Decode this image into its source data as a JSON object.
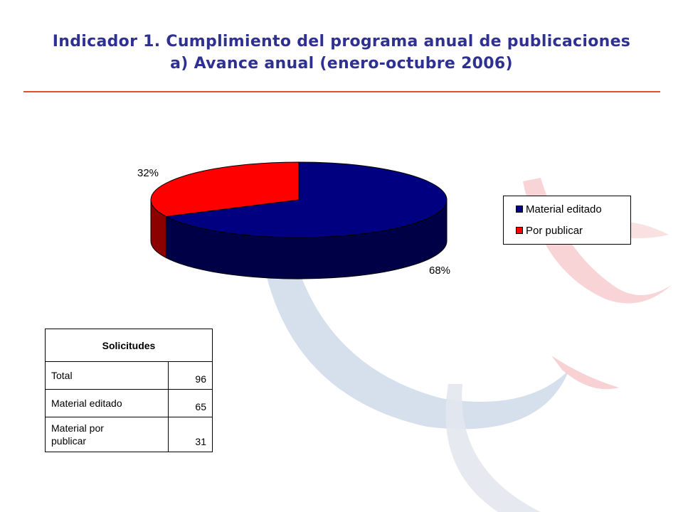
{
  "title": {
    "line1": "Indicador 1. Cumplimiento del programa anual de publicaciones",
    "line2": "a) Avance anual (enero-octubre 2006)"
  },
  "colors": {
    "title": "#2e3192",
    "rule": "#e0531f",
    "series_material_editado": "#000080",
    "series_por_publicar": "#ff0000"
  },
  "chart_data": {
    "type": "pie",
    "title": "",
    "slices": [
      {
        "label": "Material editado",
        "value": 65,
        "percent_label": "68%",
        "color": "#000080"
      },
      {
        "label": "Por publicar",
        "value": 31,
        "percent_label": "32%",
        "color": "#ff0000"
      }
    ],
    "legend": {
      "placement": "right",
      "entries": [
        "Material editado",
        "Por publicar"
      ]
    }
  },
  "table": {
    "header": "Solicitudes",
    "rows": [
      {
        "label": "Total",
        "value": "96"
      },
      {
        "label": "Material editado",
        "value": "65"
      },
      {
        "label_line1": "Material por",
        "label_line2": "publicar",
        "value": "31"
      }
    ]
  }
}
